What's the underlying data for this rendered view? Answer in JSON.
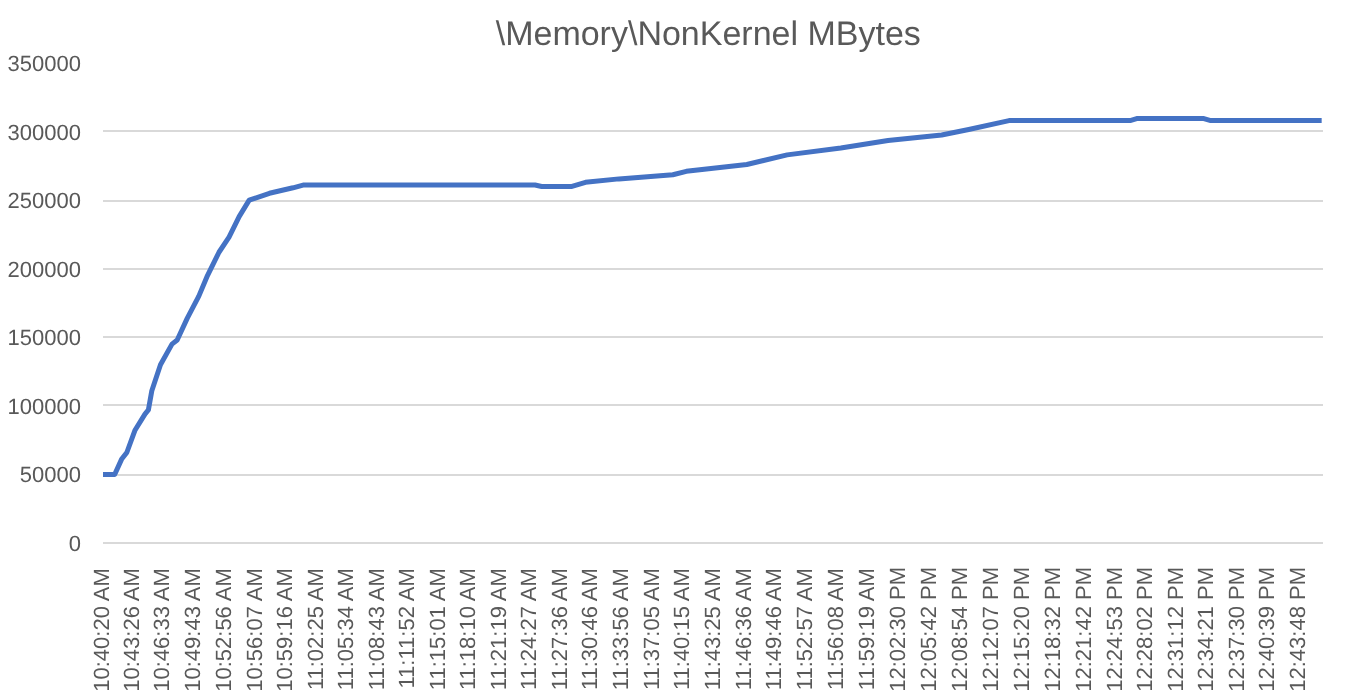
{
  "chart_data": {
    "type": "line",
    "title": "\\Memory\\NonKernel  MBytes",
    "x": [
      10.6722,
      10.6923,
      10.7041,
      10.7132,
      10.727,
      10.7444,
      10.7503,
      10.7562,
      10.7711,
      10.7909,
      10.7999,
      10.8173,
      10.8371,
      10.852,
      10.8718,
      10.8891,
      10.9065,
      10.9238,
      10.9586,
      10.9992,
      11.0165,
      11.4157,
      11.4271,
      11.4792,
      11.5025,
      11.5601,
      11.6528,
      11.676,
      11.7801,
      11.8496,
      11.9419,
      12.0231,
      12.1155,
      12.162,
      12.2314,
      12.4397,
      12.4511,
      12.5667,
      12.5785,
      12.7694
    ],
    "series": [
      {
        "color": "#4472c4",
        "values": [
          50000,
          50000,
          61000,
          66000,
          82000,
          94000,
          97000,
          111000,
          130000,
          145000,
          148000,
          164000,
          180000,
          195000,
          212000,
          223000,
          238000,
          250000,
          255000,
          259000,
          261000,
          261000,
          260000,
          260000,
          263000,
          265500,
          268500,
          271000,
          276000,
          283000,
          288000,
          293500,
          297500,
          301500,
          308000,
          308000,
          309500,
          309500,
          308000,
          308000
        ]
      }
    ],
    "xlim": [
      10.6722,
      12.7717
    ],
    "xticks": [
      {
        "value": 10.6722,
        "label": "10:40:20 AM"
      },
      {
        "value": 10.7239,
        "label": "10:43:26 AM"
      },
      {
        "value": 10.7758,
        "label": "10:46:33 AM"
      },
      {
        "value": 10.8286,
        "label": "10:49:43 AM"
      },
      {
        "value": 10.8822,
        "label": "10:52:56 AM"
      },
      {
        "value": 10.9353,
        "label": "10:56:07 AM"
      },
      {
        "value": 10.9878,
        "label": "10:59:16 AM"
      },
      {
        "value": 11.0403,
        "label": "11:02:25 AM"
      },
      {
        "value": 11.0928,
        "label": "11:05:34 AM"
      },
      {
        "value": 11.1453,
        "label": "11:08:43 AM"
      },
      {
        "value": 11.1978,
        "label": "11:11:52 AM"
      },
      {
        "value": 11.2503,
        "label": "11:15:01 AM"
      },
      {
        "value": 11.3028,
        "label": "11:18:10 AM"
      },
      {
        "value": 11.3553,
        "label": "11:21:19 AM"
      },
      {
        "value": 11.4075,
        "label": "11:24:27 AM"
      },
      {
        "value": 11.46,
        "label": "11:27:36 AM"
      },
      {
        "value": 11.5128,
        "label": "11:30:46 AM"
      },
      {
        "value": 11.5656,
        "label": "11:33:56 AM"
      },
      {
        "value": 11.6181,
        "label": "11:37:05 AM"
      },
      {
        "value": 11.6708,
        "label": "11:40:15 AM"
      },
      {
        "value": 11.7236,
        "label": "11:43:25 AM"
      },
      {
        "value": 11.7767,
        "label": "11:46:36 AM"
      },
      {
        "value": 11.8294,
        "label": "11:49:46 AM"
      },
      {
        "value": 11.8825,
        "label": "11:52:57 AM"
      },
      {
        "value": 11.9356,
        "label": "11:56:08 AM"
      },
      {
        "value": 11.9886,
        "label": "11:59:19 AM"
      },
      {
        "value": 12.0417,
        "label": "12:02:30 PM"
      },
      {
        "value": 12.095,
        "label": "12:05:42 PM"
      },
      {
        "value": 12.1483,
        "label": "12:08:54 PM"
      },
      {
        "value": 12.2019,
        "label": "12:12:07 PM"
      },
      {
        "value": 12.2556,
        "label": "12:15:20 PM"
      },
      {
        "value": 12.3089,
        "label": "12:18:32 PM"
      },
      {
        "value": 12.3617,
        "label": "12:21:42 PM"
      },
      {
        "value": 12.4147,
        "label": "12:24:53 PM"
      },
      {
        "value": 12.4672,
        "label": "12:28:02 PM"
      },
      {
        "value": 12.52,
        "label": "12:31:12 PM"
      },
      {
        "value": 12.5725,
        "label": "12:34:21 PM"
      },
      {
        "value": 12.625,
        "label": "12:37:30 PM"
      },
      {
        "value": 12.6775,
        "label": "12:40:39 PM"
      },
      {
        "value": 12.73,
        "label": "12:43:48 PM"
      }
    ],
    "ylim": [
      0,
      350000
    ],
    "yticks": [
      0,
      50000,
      100000,
      150000,
      200000,
      250000,
      300000,
      350000
    ],
    "grid": "y",
    "marker": "none",
    "line_style": "solid"
  }
}
